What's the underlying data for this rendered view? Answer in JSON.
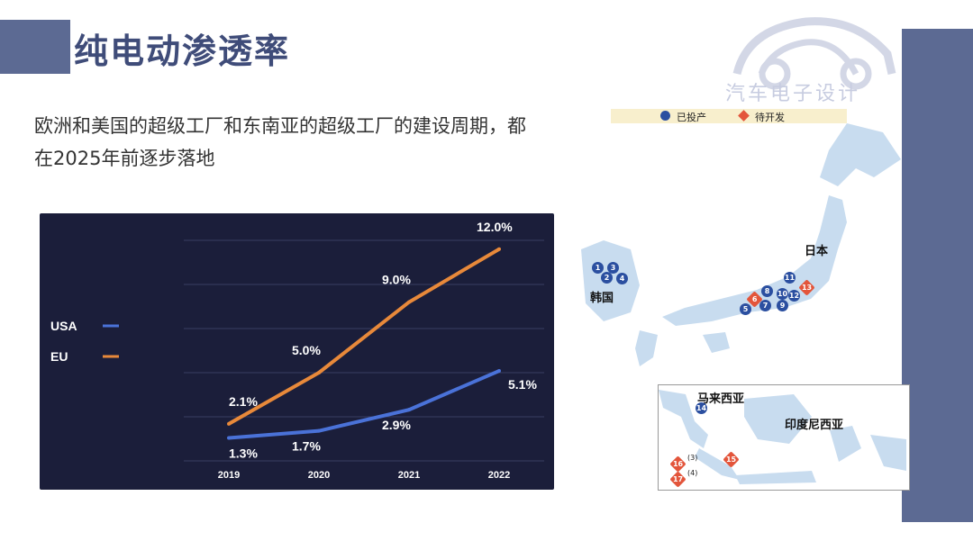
{
  "title": "纯电动渗透率",
  "subtitle": "欧洲和美国的超级工厂和东南亚的超级工厂的建设周期，都在2025年前逐步落地",
  "logo_text": "汽车电子设计",
  "colors": {
    "usa": "#4a72d8",
    "eu": "#e8893a",
    "accent": "#5c6a93",
    "operating": "#2b4fa0",
    "developing": "#e3553b"
  },
  "chart_data": {
    "type": "line",
    "x": [
      "2019",
      "2020",
      "2021",
      "2022"
    ],
    "series": [
      {
        "name": "USA",
        "values": [
          1.3,
          1.7,
          2.9,
          5.1
        ],
        "labels": [
          "1.3%",
          "1.7%",
          "2.9%",
          "5.1%"
        ]
      },
      {
        "name": "EU",
        "values": [
          2.1,
          5.0,
          9.0,
          12.0
        ],
        "labels": [
          "2.1%",
          "5.0%",
          "9.0%",
          "12.0%"
        ]
      }
    ],
    "ylim": [
      0,
      12.5
    ],
    "grid": true,
    "legend": "left"
  },
  "map": {
    "legend": {
      "operating": "已投产",
      "developing": "待开发"
    },
    "labels": {
      "japan": "日本",
      "korea": "韩国",
      "malaysia": "马来西亚",
      "indonesia": "印度尼西亚"
    },
    "markers": [
      "1",
      "2",
      "3",
      "4",
      "5",
      "6",
      "7",
      "8",
      "9",
      "10",
      "11",
      "12",
      "13",
      "14",
      "15",
      "16",
      "17"
    ],
    "notes": [
      "(3)",
      "(4)"
    ]
  }
}
